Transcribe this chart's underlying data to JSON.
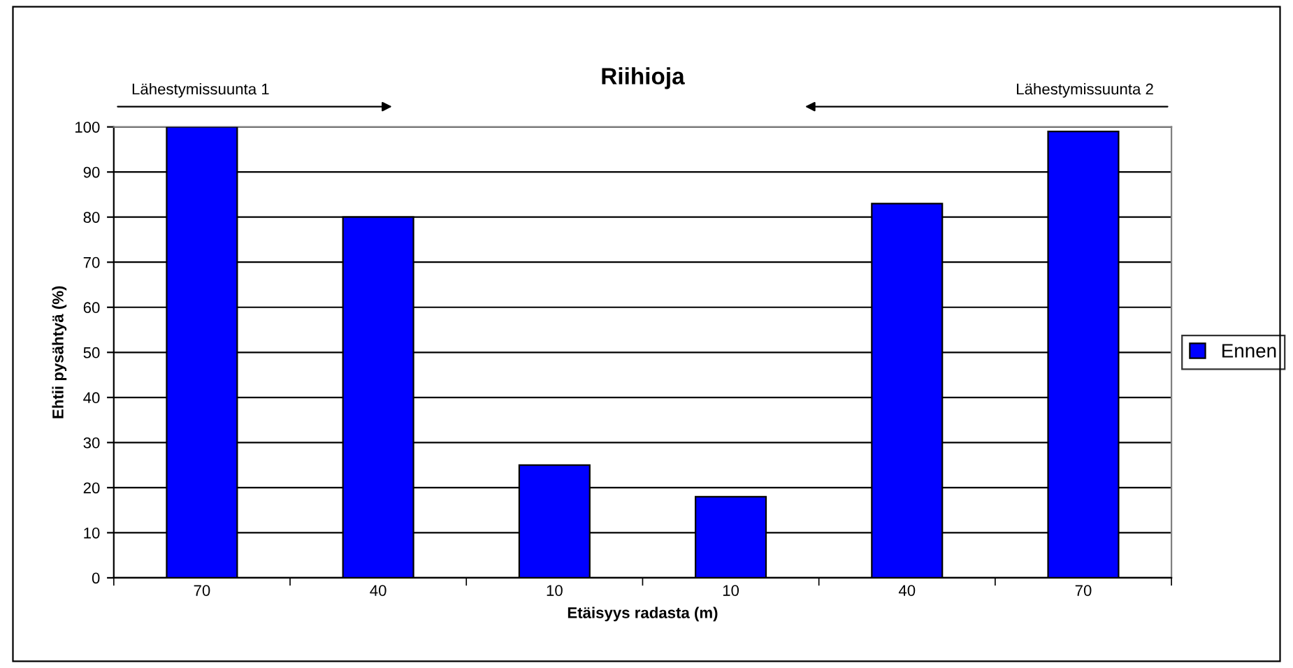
{
  "chart_data": {
    "type": "bar",
    "title": "Riihioja",
    "xlabel": "Etäisyys radasta (m)",
    "ylabel": "Ehtii pysähtyä (%)",
    "categories": [
      "70",
      "40",
      "10",
      "10",
      "40",
      "70"
    ],
    "series": [
      {
        "name": "Ennen",
        "color": "#0000ff",
        "values": [
          100,
          80,
          25,
          18,
          83,
          99
        ]
      }
    ],
    "ylim": [
      0,
      100
    ],
    "yticks": [
      0,
      10,
      20,
      30,
      40,
      50,
      60,
      70,
      80,
      90,
      100
    ],
    "grid": "y",
    "legend": "right",
    "annotations": [
      "Lähestymissuunta 1",
      "Lähestymissuunta 2"
    ]
  }
}
